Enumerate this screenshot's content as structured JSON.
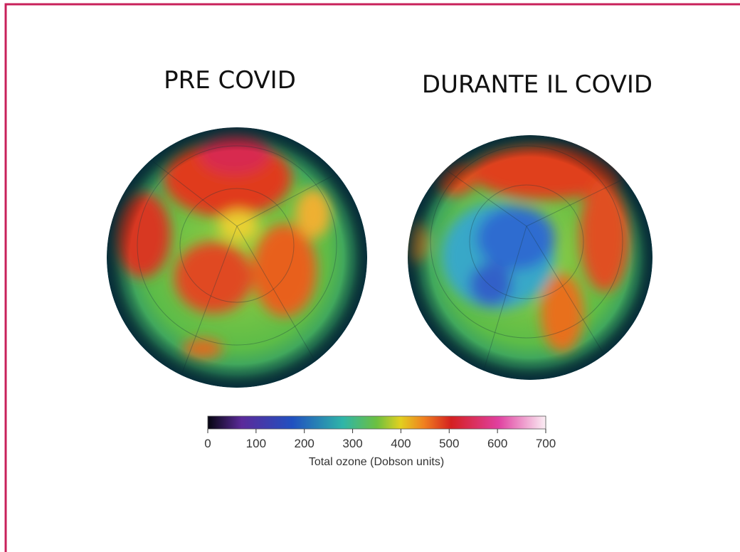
{
  "panels": [
    {
      "title": "PRE COVID"
    },
    {
      "title": "DURANTE IL COVID"
    }
  ],
  "colorbar": {
    "label": "Total ozone (Dobson units)",
    "lim": [
      0,
      700
    ],
    "ticks": [
      0,
      100,
      200,
      300,
      400,
      500,
      600,
      700
    ]
  }
}
